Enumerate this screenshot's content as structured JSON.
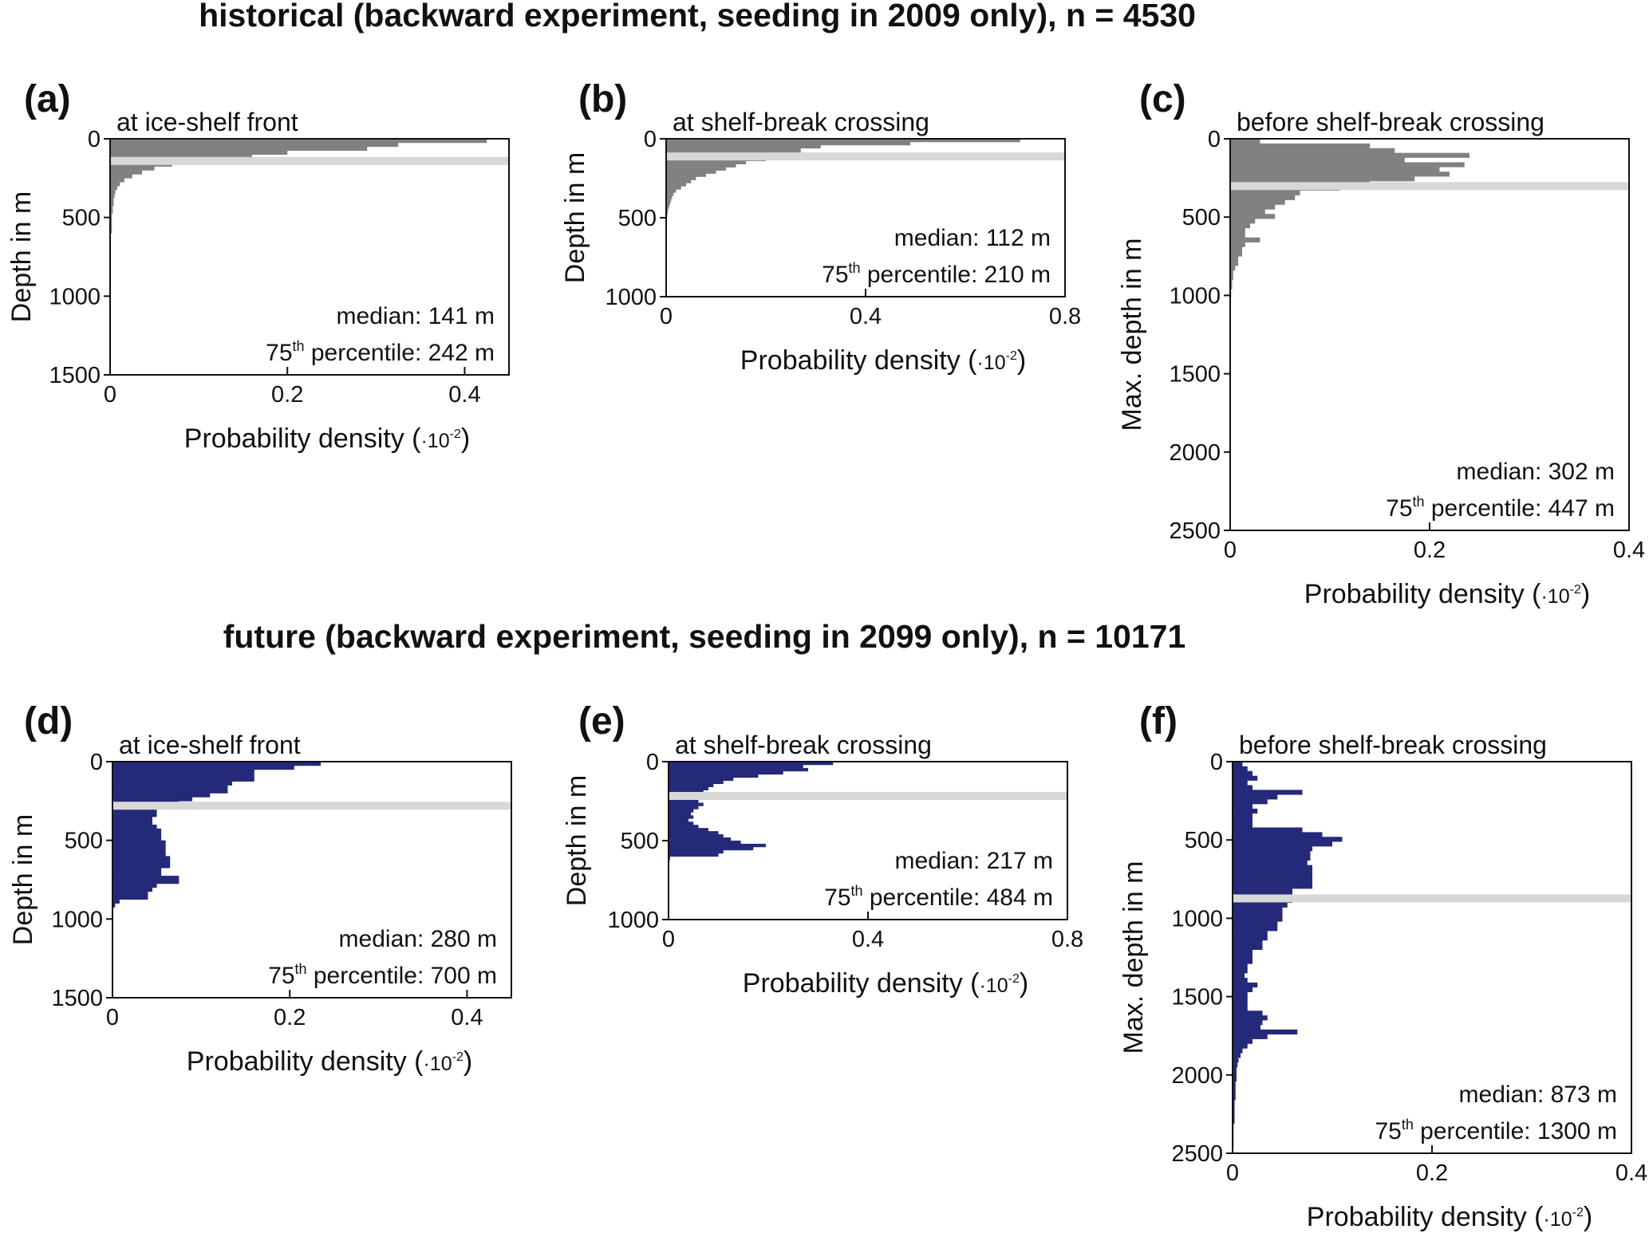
{
  "figure": {
    "historical_title": "historical (backward experiment, seeding in 2009 only), n = 4530",
    "future_title": "future (backward experiment, seeding in 2099 only), n = 10171"
  },
  "colors": {
    "historical": "#818181",
    "future": "#25297a",
    "median_line": "#d8d8d8",
    "axes": "#111111"
  },
  "chart_data": [
    {
      "id": "a",
      "label": "(a)",
      "type": "bar",
      "orientation": "horizontal",
      "group": "historical",
      "title": "at ice-shelf front",
      "xlabel": "Probability density",
      "xlabel_unit_base": "·10",
      "xlabel_unit_exp": "-2",
      "ylabel": "Depth in m",
      "xlim": [
        0,
        0.45
      ],
      "ylim": [
        0,
        1500
      ],
      "xticks": [
        0,
        0.2,
        0.4
      ],
      "xtick_labels": [
        "0",
        "0.2",
        "0.4"
      ],
      "yticks": [
        0,
        500,
        1000,
        1500
      ],
      "ytick_labels": [
        "0",
        "500",
        "1000",
        "1500"
      ],
      "median_m": 141,
      "median_text": "median: 141 m",
      "p75_prefix": "75",
      "p75_sup": "th",
      "p75_text": " percentile: 242 m",
      "bin_width": 25,
      "values": [
        0.425,
        0.325,
        0.29,
        0.2,
        0.16,
        0.095,
        0.07,
        0.05,
        0.036,
        0.025,
        0.016,
        0.011,
        0.008,
        0.006,
        0.005,
        0.004,
        0.004,
        0.003,
        0.003,
        0.002,
        0.002,
        0.002,
        0.002,
        0.002,
        0.001,
        0.001,
        0,
        0,
        0,
        0,
        0,
        0,
        0,
        0,
        0,
        0,
        0,
        0,
        0,
        0
      ]
    },
    {
      "id": "b",
      "label": "(b)",
      "type": "bar",
      "orientation": "horizontal",
      "group": "historical",
      "title": "at shelf-break crossing",
      "xlabel": "Probability density",
      "xlabel_unit_base": "·10",
      "xlabel_unit_exp": "-2",
      "ylabel": "Depth in m",
      "xlim": [
        0,
        0.8
      ],
      "ylim": [
        0,
        1000
      ],
      "xticks": [
        0,
        0.4,
        0.8
      ],
      "xtick_labels": [
        "0",
        "0.4",
        "0.8"
      ],
      "yticks": [
        0,
        500,
        1000
      ],
      "ytick_labels": [
        "0",
        "500",
        "1000"
      ],
      "median_m": 112,
      "median_text": "median: 112 m",
      "p75_prefix": "75",
      "p75_sup": "th",
      "p75_text": " percentile: 210 m",
      "bin_width": 20,
      "values": [
        0.71,
        0.49,
        0.31,
        0.27,
        0.27,
        0.25,
        0.2,
        0.16,
        0.14,
        0.12,
        0.1,
        0.08,
        0.06,
        0.05,
        0.04,
        0.03,
        0.02,
        0.015,
        0.012,
        0.01,
        0.008,
        0.006,
        0.004,
        0.003,
        0.002,
        0.001,
        0,
        0,
        0,
        0
      ]
    },
    {
      "id": "c",
      "label": "(c)",
      "type": "bar",
      "orientation": "horizontal",
      "group": "historical",
      "title": "before shelf-break crossing",
      "xlabel": "Probability density",
      "xlabel_unit_base": "·10",
      "xlabel_unit_exp": "-2",
      "ylabel": "Max. depth in m",
      "xlim": [
        0,
        0.4
      ],
      "ylim": [
        0,
        2500
      ],
      "xticks": [
        0,
        0.2,
        0.4
      ],
      "xtick_labels": [
        "0",
        "0.2",
        "0.4"
      ],
      "yticks": [
        0,
        500,
        1000,
        1500,
        2000,
        2500
      ],
      "ytick_labels": [
        "0",
        "500",
        "1000",
        "1500",
        "2000",
        "2500"
      ],
      "median_m": 302,
      "median_text": "median: 302 m",
      "p75_prefix": "75",
      "p75_sup": "th",
      "p75_text": " percentile: 447 m",
      "bin_width": 30,
      "values": [
        0.03,
        0.14,
        0.165,
        0.24,
        0.175,
        0.235,
        0.21,
        0.22,
        0.185,
        0.14,
        0.11,
        0.07,
        0.065,
        0.055,
        0.045,
        0.035,
        0.045,
        0.025,
        0.02,
        0.015,
        0.015,
        0.03,
        0.015,
        0.012,
        0.012,
        0.008,
        0.008,
        0.005,
        0.003,
        0.003,
        0.002,
        0.002,
        0.001,
        0.001,
        0,
        0,
        0,
        0,
        0,
        0
      ]
    },
    {
      "id": "d",
      "label": "(d)",
      "type": "bar",
      "orientation": "horizontal",
      "group": "future",
      "title": "at ice-shelf front",
      "xlabel": "Probability density",
      "xlabel_unit_base": "·10",
      "xlabel_unit_exp": "-2",
      "ylabel": "Depth in m",
      "xlim": [
        0,
        0.45
      ],
      "ylim": [
        0,
        1500
      ],
      "xticks": [
        0,
        0.2,
        0.4
      ],
      "xtick_labels": [
        "0",
        "0.2",
        "0.4"
      ],
      "yticks": [
        0,
        500,
        1000,
        1500
      ],
      "ytick_labels": [
        "0",
        "500",
        "1000",
        "1500"
      ],
      "median_m": 280,
      "median_text": "median: 280 m",
      "p75_prefix": "75",
      "p75_sup": "th",
      "p75_text": " percentile: 700 m",
      "bin_width": 25,
      "values": [
        0.235,
        0.205,
        0.16,
        0.16,
        0.16,
        0.135,
        0.13,
        0.13,
        0.11,
        0.09,
        0.075,
        0.06,
        0.05,
        0.05,
        0.045,
        0.045,
        0.05,
        0.055,
        0.055,
        0.055,
        0.06,
        0.06,
        0.06,
        0.06,
        0.065,
        0.065,
        0.065,
        0.055,
        0.055,
        0.075,
        0.075,
        0.05,
        0.045,
        0.04,
        0.04,
        0.008,
        0.003,
        0,
        0,
        0
      ]
    },
    {
      "id": "e",
      "label": "(e)",
      "type": "bar",
      "orientation": "horizontal",
      "group": "future",
      "title": "at shelf-break crossing",
      "xlabel": "Probability density",
      "xlabel_unit_base": "·10",
      "xlabel_unit_exp": "-2",
      "ylabel": "Depth in m",
      "xlim": [
        0,
        0.8
      ],
      "ylim": [
        0,
        1000
      ],
      "xticks": [
        0,
        0.4,
        0.8
      ],
      "xtick_labels": [
        "0",
        "0.4",
        "0.8"
      ],
      "yticks": [
        0,
        500,
        1000
      ],
      "ytick_labels": [
        "0",
        "500",
        "1000"
      ],
      "median_m": 217,
      "median_text": "median: 217 m",
      "p75_prefix": "75",
      "p75_sup": "th",
      "p75_text": " percentile: 484 m",
      "bin_width": 20,
      "values": [
        0.33,
        0.27,
        0.28,
        0.23,
        0.18,
        0.13,
        0.11,
        0.09,
        0.08,
        0.07,
        0.1,
        0.08,
        0.06,
        0.07,
        0.06,
        0.05,
        0.045,
        0.05,
        0.04,
        0.05,
        0.06,
        0.08,
        0.1,
        0.11,
        0.125,
        0.145,
        0.195,
        0.17,
        0.11,
        0.1,
        0.003,
        0.002,
        0.001,
        0,
        0,
        0,
        0,
        0,
        0,
        0,
        0,
        0,
        0,
        0,
        0,
        0,
        0,
        0,
        0,
        0
      ]
    },
    {
      "id": "f",
      "label": "(f)",
      "type": "bar",
      "orientation": "horizontal",
      "group": "future",
      "title": "before shelf-break crossing",
      "xlabel": "Probability density",
      "xlabel_unit_base": "·10",
      "xlabel_unit_exp": "-2",
      "ylabel": "Max. depth in m",
      "xlim": [
        0,
        0.4
      ],
      "ylim": [
        0,
        2500
      ],
      "xticks": [
        0,
        0.2,
        0.4
      ],
      "xtick_labels": [
        "0",
        "0.2",
        "0.4"
      ],
      "yticks": [
        0,
        500,
        1000,
        1500,
        2000,
        2500
      ],
      "ytick_labels": [
        "0",
        "500",
        "1000",
        "1500",
        "2000",
        "2500"
      ],
      "median_m": 873,
      "median_text": "median: 873 m",
      "p75_prefix": "75",
      "p75_sup": "th",
      "p75_text": " percentile: 1300 m",
      "bin_width": 30,
      "values": [
        0.01,
        0.015,
        0.02,
        0.025,
        0.015,
        0.02,
        0.07,
        0.045,
        0.035,
        0.02,
        0.025,
        0.02,
        0.02,
        0.02,
        0.07,
        0.09,
        0.11,
        0.1,
        0.08,
        0.078,
        0.078,
        0.075,
        0.08,
        0.08,
        0.08,
        0.08,
        0.08,
        0.06,
        0.06,
        0.06,
        0.055,
        0.05,
        0.05,
        0.05,
        0.045,
        0.045,
        0.035,
        0.035,
        0.03,
        0.03,
        0.02,
        0.02,
        0.02,
        0.015,
        0.015,
        0.012,
        0.015,
        0.025,
        0.02,
        0.015,
        0.015,
        0.015,
        0.015,
        0.03,
        0.035,
        0.03,
        0.028,
        0.065,
        0.035,
        0.02,
        0.015,
        0.01,
        0.008,
        0.006,
        0.005,
        0.004,
        0.004,
        0.004,
        0.003,
        0.003,
        0.003,
        0.003,
        0.002,
        0.002,
        0.002,
        0.002,
        0.002,
        0.001,
        0.001,
        0.001,
        0.001,
        0.001,
        0,
        0
      ]
    }
  ]
}
